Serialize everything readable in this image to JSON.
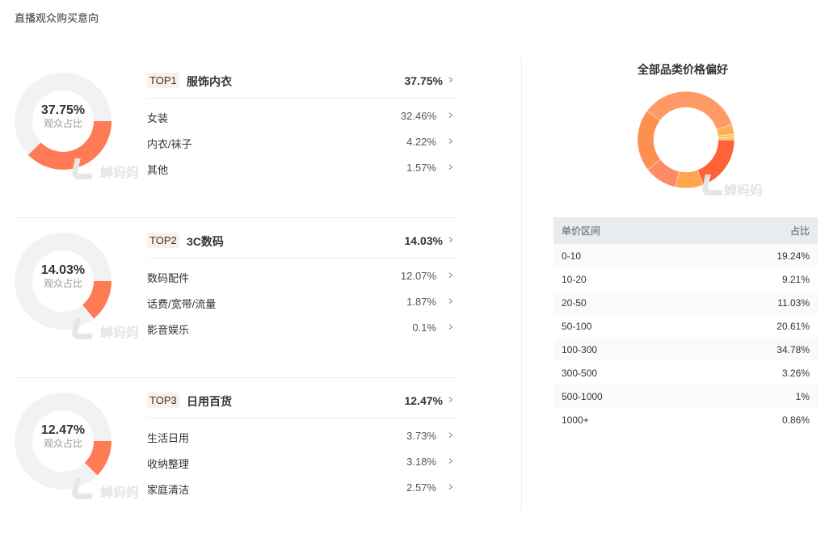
{
  "page_title": "直播观众购买意向",
  "donut_label": "观众占比",
  "watermark": "蝉妈妈",
  "colors": {
    "accent": "#ff7a55",
    "track": "#f2f2f2"
  },
  "categories": [
    {
      "rank": "TOP1",
      "name": "服饰内衣",
      "pct": "37.75%",
      "value": 37.75,
      "sub": [
        {
          "name": "女装",
          "pct": "32.46%"
        },
        {
          "name": "内衣/袜子",
          "pct": "4.22%"
        },
        {
          "name": "其他",
          "pct": "1.57%"
        }
      ]
    },
    {
      "rank": "TOP2",
      "name": "3C数码",
      "pct": "14.03%",
      "value": 14.03,
      "sub": [
        {
          "name": "数码配件",
          "pct": "12.07%"
        },
        {
          "name": "话费/宽带/流量",
          "pct": "1.87%"
        },
        {
          "name": "影音娱乐",
          "pct": "0.1%"
        }
      ]
    },
    {
      "rank": "TOP3",
      "name": "日用百货",
      "pct": "12.47%",
      "value": 12.47,
      "sub": [
        {
          "name": "生活日用",
          "pct": "3.73%"
        },
        {
          "name": "收纳整理",
          "pct": "3.18%"
        },
        {
          "name": "家庭清洁",
          "pct": "2.57%"
        }
      ]
    }
  ],
  "price": {
    "title": "全部品类价格偏好",
    "headers": [
      "单价区间",
      "占比"
    ],
    "rows": [
      {
        "range": "0-10",
        "pct": "19.24%",
        "value": 19.24,
        "color": "#ff6236"
      },
      {
        "range": "10-20",
        "pct": "9.21%",
        "value": 9.21,
        "color": "#ffa54f"
      },
      {
        "range": "20-50",
        "pct": "11.03%",
        "value": 11.03,
        "color": "#ff8a6a"
      },
      {
        "range": "50-100",
        "pct": "20.61%",
        "value": 20.61,
        "color": "#ff8f50"
      },
      {
        "range": "100-300",
        "pct": "34.78%",
        "value": 34.78,
        "color": "#ff9a66"
      },
      {
        "range": "300-500",
        "pct": "3.26%",
        "value": 3.26,
        "color": "#ffb055"
      },
      {
        "range": "500-1000",
        "pct": "1%",
        "value": 1,
        "color": "#ffc070"
      },
      {
        "range": "1000+",
        "pct": "0.86%",
        "value": 0.86,
        "color": "#ffc83a"
      }
    ]
  }
}
